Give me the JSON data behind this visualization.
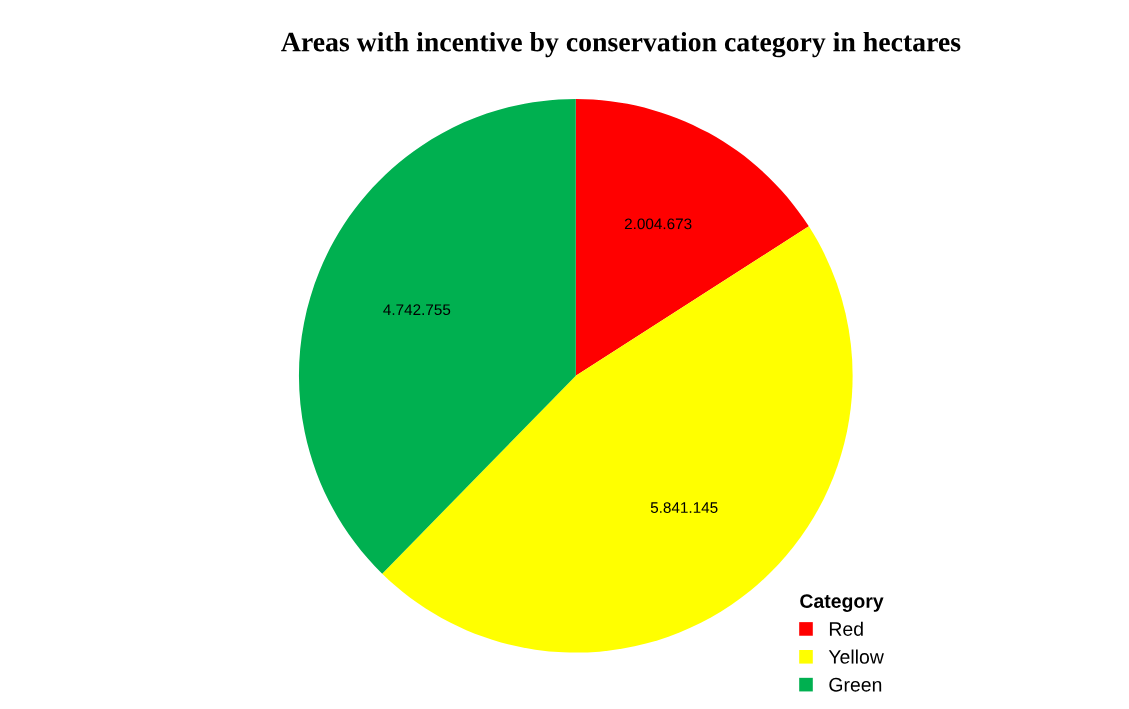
{
  "chart_data": {
    "type": "pie",
    "title": "Areas with incentive by conservation category in hectares",
    "categories": [
      "Red",
      "Yellow",
      "Green"
    ],
    "values": [
      2004673,
      5841145,
      4742755
    ],
    "value_labels": [
      "2.004.673",
      "5.841.145",
      "4.742.755"
    ],
    "colors": [
      "#ff0000",
      "#ffff00",
      "#00b050"
    ],
    "legend_title": "Category",
    "legend": "bottom right"
  }
}
